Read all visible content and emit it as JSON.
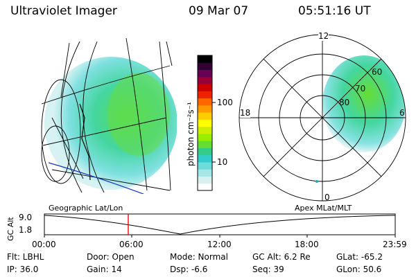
{
  "header": {
    "title": "Ultraviolet Imager",
    "date": "09 Mar 07",
    "time": "05:51:16 UT"
  },
  "colorbar": {
    "unit": "photon cm⁻²s⁻¹",
    "ticks": [
      "100",
      "10"
    ],
    "colors": [
      "#ffffff",
      "#d8f0f0",
      "#a8e6e6",
      "#6fdada",
      "#33cccc",
      "#33cc88",
      "#66dd33",
      "#99ee00",
      "#ccee00",
      "#ffff00",
      "#ffcc00",
      "#ff9900",
      "#ff6600",
      "#ee2200",
      "#cc0000",
      "#99003a",
      "#660055",
      "#330033",
      "#000000"
    ]
  },
  "polar": {
    "mlt_labels": [
      "12",
      "18",
      "6",
      "0"
    ],
    "mlat_labels": [
      "60",
      "70",
      "80"
    ]
  },
  "geo_label": "Geographic Lat/Lon",
  "apex_label": "Apex MLat/MLT",
  "altitude": {
    "axis_label": "GC Alt",
    "ticks": [
      "9.0",
      "1.8"
    ]
  },
  "time_axis": [
    "00:00",
    "06:00",
    "12:00",
    "18:00",
    "23:59"
  ],
  "info": {
    "filter": "Flt: LBHL",
    "door": "Door: Open",
    "mode": "Mode: Normal",
    "gcalt": "GC Alt: 6.2 Re",
    "glat": "GLat: -65.2",
    "ip": "IP: 36.0",
    "gain": "Gain: 14",
    "dsp": "Dsp:   -6.6",
    "seq": "Seq: 39",
    "glon": "GLon: 50.6"
  }
}
